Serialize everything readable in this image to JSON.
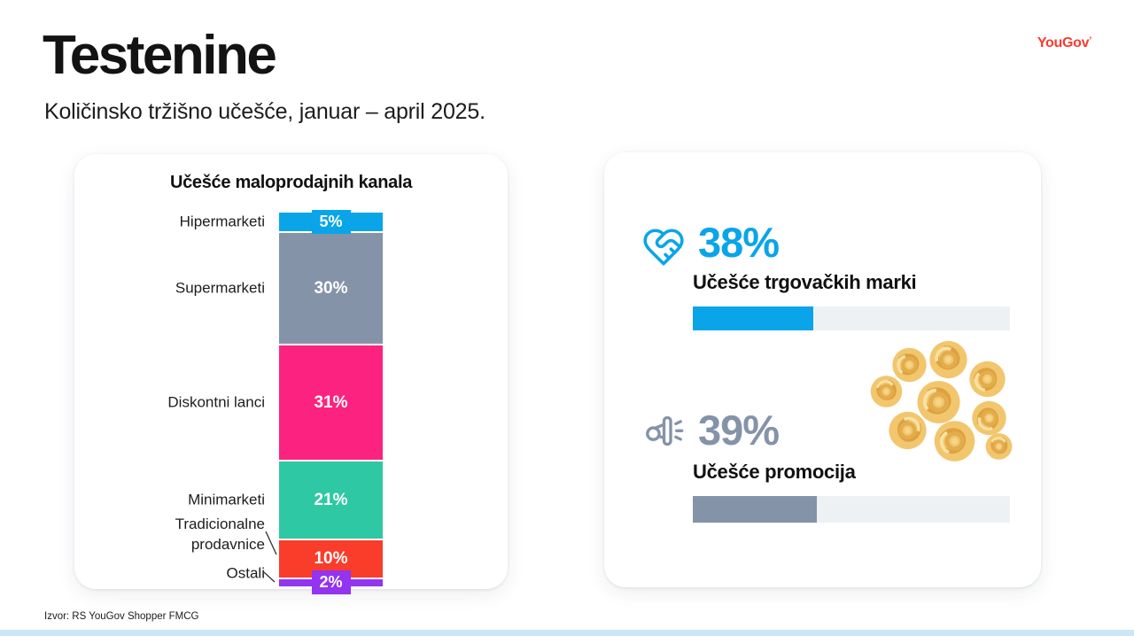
{
  "page": {
    "title": "Testenine",
    "subtitle": "Količinsko tržišno učešće, januar – april 2025.",
    "source": "Izvor: RS YouGov Shopper FMCG",
    "logo": "YouGov",
    "logo_mark": "’"
  },
  "colors": {
    "accent_blue": "#0AA5E9",
    "gray_blue": "#8593A9",
    "pink": "#FC2380",
    "teal": "#2EC8A4",
    "orange": "#FA3C2B",
    "purple": "#9433F0",
    "logo_red": "#FA3B2F",
    "progress_track": "#EEF1F3",
    "bottom_strip": "#CBE6F5"
  },
  "chart_data": {
    "type": "bar",
    "stacked": true,
    "orientation": "vertical",
    "title": "Učešće maloprodajnih kanala",
    "unit": "%",
    "categories": [
      "Hipermarketi",
      "Supermarketi",
      "Diskontni lanci",
      "Minimarketi",
      "Tradicionalne prodavnice",
      "Ostali"
    ],
    "values": [
      5,
      30,
      31,
      21,
      10,
      2
    ],
    "segments": [
      {
        "label": "Hipermarketi",
        "value": 5,
        "display": "5%",
        "color": "#0AA5E9",
        "boxed": true
      },
      {
        "label": "Supermarketi",
        "value": 30,
        "display": "30%",
        "color": "#8593A9",
        "boxed": false
      },
      {
        "label": "Diskontni lanci",
        "value": 31,
        "display": "31%",
        "color": "#FC2380",
        "boxed": false
      },
      {
        "label": "Minimarketi",
        "value": 21,
        "display": "21%",
        "color": "#2EC8A4",
        "boxed": false
      },
      {
        "label": "Tradicionalne prodavnice",
        "value": 10,
        "display": "10%",
        "color": "#FA3C2B",
        "boxed": false,
        "label_lines": [
          "Tradicionalne",
          "prodavnice"
        ]
      },
      {
        "label": "Ostali",
        "value": 2,
        "display": "2%",
        "color": "#9433F0",
        "boxed": true
      }
    ]
  },
  "stats": [
    {
      "icon": "heart-handshake-icon",
      "value": "38%",
      "pct": 38,
      "label": "Učešće trgovačkih marki",
      "color": "#0AA5E9"
    },
    {
      "icon": "megaphone-icon",
      "value": "39%",
      "pct": 39,
      "label": "Učešće promocija",
      "color": "#8593A9"
    }
  ]
}
